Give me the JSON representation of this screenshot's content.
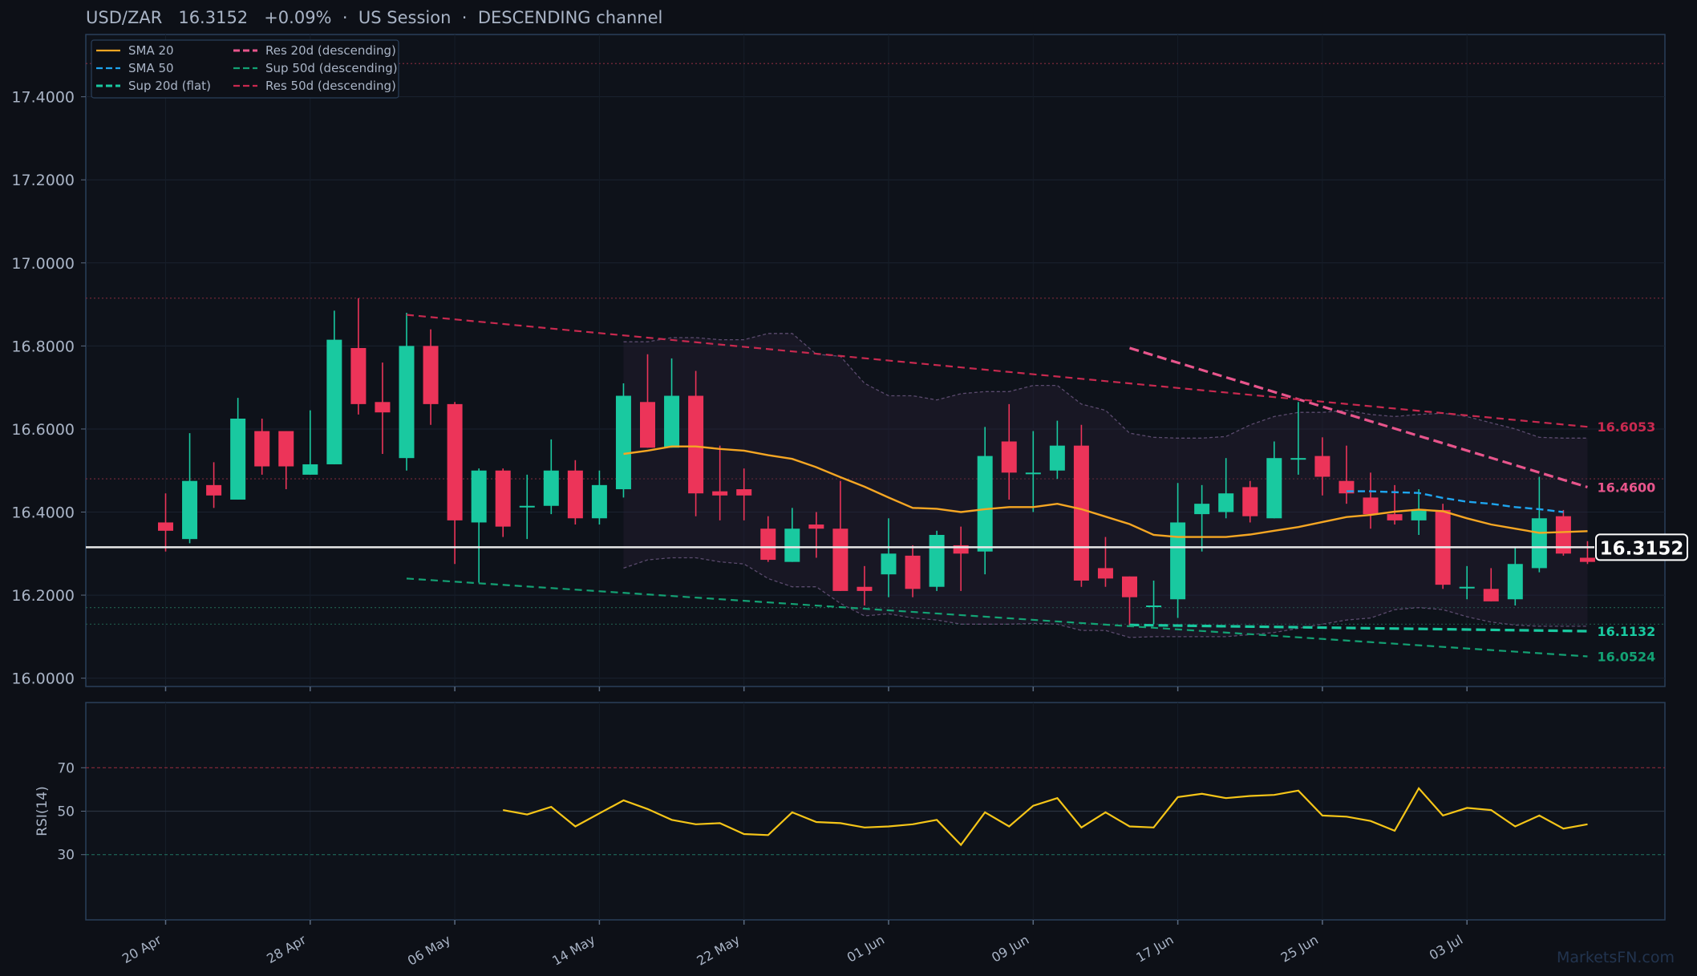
{
  "header": {
    "symbol": "USD/ZAR",
    "price": "16.3152",
    "change": "+0.09%",
    "session": "US Session",
    "channel": "DESCENDING channel",
    "sep": "·"
  },
  "watermark": "MarketsFN.com",
  "colors": {
    "background": "#0d1017",
    "plot_bg": "#0e121a",
    "frame": "#2a3f5a",
    "up": "#19c9a0",
    "down": "#ec3459",
    "sma20": "#f5a623",
    "sma50": "#1ea5ef",
    "sup20": "#19c9a0",
    "res20": "#e8558c",
    "sup50": "#13a274",
    "res50": "#c8294f",
    "rsi": "#f5c518",
    "band_edge": "#5b4b6e",
    "price_line": "#e8e8e8"
  },
  "chart_data": [
    {
      "type": "candlestick",
      "title": "USD/ZAR 16.3152 +0.09% · US Session · DESCENDING channel",
      "ylim": [
        15.98,
        17.55
      ],
      "y_ticks": [
        "16.0000",
        "16.2000",
        "16.4000",
        "16.6000",
        "16.8000",
        "17.0000",
        "17.2000",
        "17.4000"
      ],
      "x_ticks": [
        "20 Apr",
        "28 Apr",
        "06 May",
        "14 May",
        "22 May",
        "01 Jun",
        "09 Jun",
        "17 Jun",
        "25 Jun",
        "03 Jul"
      ],
      "current_price": "16.3152",
      "horizontal_levels": [
        17.48,
        16.915,
        16.48,
        16.17,
        16.13
      ],
      "candles": [
        {
          "date": "20 Apr",
          "o": 16.375,
          "h": 16.445,
          "l": 16.305,
          "c": 16.355
        },
        {
          "date": "21 Apr",
          "o": 16.335,
          "h": 16.59,
          "l": 16.325,
          "c": 16.475
        },
        {
          "date": "22 Apr",
          "o": 16.465,
          "h": 16.52,
          "l": 16.41,
          "c": 16.44
        },
        {
          "date": "23 Apr",
          "o": 16.43,
          "h": 16.675,
          "l": 16.43,
          "c": 16.625
        },
        {
          "date": "24 Apr",
          "o": 16.595,
          "h": 16.625,
          "l": 16.49,
          "c": 16.51
        },
        {
          "date": "27 Apr",
          "o": 16.595,
          "h": 16.595,
          "l": 16.455,
          "c": 16.51
        },
        {
          "date": "28 Apr",
          "o": 16.49,
          "h": 16.645,
          "l": 16.49,
          "c": 16.515
        },
        {
          "date": "29 Apr",
          "o": 16.515,
          "h": 16.885,
          "l": 16.515,
          "c": 16.815
        },
        {
          "date": "30 Apr",
          "o": 16.795,
          "h": 16.915,
          "l": 16.635,
          "c": 16.66
        },
        {
          "date": "01 May",
          "o": 16.665,
          "h": 16.76,
          "l": 16.54,
          "c": 16.64
        },
        {
          "date": "04 May",
          "o": 16.53,
          "h": 16.88,
          "l": 16.5,
          "c": 16.8
        },
        {
          "date": "05 May",
          "o": 16.8,
          "h": 16.84,
          "l": 16.61,
          "c": 16.66
        },
        {
          "date": "06 May",
          "o": 16.66,
          "h": 16.665,
          "l": 16.275,
          "c": 16.38
        },
        {
          "date": "07 May",
          "o": 16.375,
          "h": 16.505,
          "l": 16.23,
          "c": 16.5
        },
        {
          "date": "08 May",
          "o": 16.5,
          "h": 16.505,
          "l": 16.34,
          "c": 16.365
        },
        {
          "date": "11 May",
          "o": 16.415,
          "h": 16.49,
          "l": 16.335,
          "c": 16.415
        },
        {
          "date": "12 May",
          "o": 16.415,
          "h": 16.575,
          "l": 16.395,
          "c": 16.5
        },
        {
          "date": "13 May",
          "o": 16.5,
          "h": 16.525,
          "l": 16.37,
          "c": 16.385
        },
        {
          "date": "14 May",
          "o": 16.385,
          "h": 16.5,
          "l": 16.37,
          "c": 16.465
        },
        {
          "date": "15 May",
          "o": 16.455,
          "h": 16.71,
          "l": 16.435,
          "c": 16.68
        },
        {
          "date": "18 May",
          "o": 16.665,
          "h": 16.78,
          "l": 16.555,
          "c": 16.555
        },
        {
          "date": "19 May",
          "o": 16.555,
          "h": 16.77,
          "l": 16.555,
          "c": 16.68
        },
        {
          "date": "20 May",
          "o": 16.68,
          "h": 16.74,
          "l": 16.39,
          "c": 16.445
        },
        {
          "date": "21 May",
          "o": 16.45,
          "h": 16.56,
          "l": 16.38,
          "c": 16.44
        },
        {
          "date": "22 May",
          "o": 16.455,
          "h": 16.505,
          "l": 16.38,
          "c": 16.44
        },
        {
          "date": "25 May",
          "o": 16.36,
          "h": 16.39,
          "l": 16.28,
          "c": 16.285
        },
        {
          "date": "26 May",
          "o": 16.28,
          "h": 16.41,
          "l": 16.28,
          "c": 16.36
        },
        {
          "date": "27 May",
          "o": 16.37,
          "h": 16.4,
          "l": 16.29,
          "c": 16.36
        },
        {
          "date": "28 May",
          "o": 16.36,
          "h": 16.475,
          "l": 16.21,
          "c": 16.21
        },
        {
          "date": "29 May",
          "o": 16.22,
          "h": 16.27,
          "l": 16.175,
          "c": 16.21
        },
        {
          "date": "01 Jun",
          "o": 16.25,
          "h": 16.385,
          "l": 16.195,
          "c": 16.3
        },
        {
          "date": "02 Jun",
          "o": 16.295,
          "h": 16.32,
          "l": 16.195,
          "c": 16.215
        },
        {
          "date": "03 Jun",
          "o": 16.22,
          "h": 16.355,
          "l": 16.21,
          "c": 16.345
        },
        {
          "date": "04 Jun",
          "o": 16.32,
          "h": 16.365,
          "l": 16.21,
          "c": 16.3
        },
        {
          "date": "05 Jun",
          "o": 16.305,
          "h": 16.605,
          "l": 16.25,
          "c": 16.535
        },
        {
          "date": "08 Jun",
          "o": 16.57,
          "h": 16.66,
          "l": 16.43,
          "c": 16.495
        },
        {
          "date": "09 Jun",
          "o": 16.495,
          "h": 16.595,
          "l": 16.4,
          "c": 16.495
        },
        {
          "date": "10 Jun",
          "o": 16.5,
          "h": 16.62,
          "l": 16.48,
          "c": 16.56
        },
        {
          "date": "11 Jun",
          "o": 16.56,
          "h": 16.61,
          "l": 16.22,
          "c": 16.235
        },
        {
          "date": "12 Jun",
          "o": 16.265,
          "h": 16.34,
          "l": 16.22,
          "c": 16.24
        },
        {
          "date": "15 Jun",
          "o": 16.245,
          "h": 16.245,
          "l": 16.125,
          "c": 16.195
        },
        {
          "date": "16 Jun",
          "o": 16.175,
          "h": 16.235,
          "l": 16.13,
          "c": 16.175
        },
        {
          "date": "17 Jun",
          "o": 16.19,
          "h": 16.47,
          "l": 16.145,
          "c": 16.375
        },
        {
          "date": "18 Jun",
          "o": 16.395,
          "h": 16.465,
          "l": 16.305,
          "c": 16.42
        },
        {
          "date": "19 Jun",
          "o": 16.4,
          "h": 16.53,
          "l": 16.385,
          "c": 16.445
        },
        {
          "date": "22 Jun",
          "o": 16.46,
          "h": 16.475,
          "l": 16.375,
          "c": 16.39
        },
        {
          "date": "23 Jun",
          "o": 16.385,
          "h": 16.57,
          "l": 16.385,
          "c": 16.53
        },
        {
          "date": "24 Jun",
          "o": 16.53,
          "h": 16.665,
          "l": 16.49,
          "c": 16.53
        },
        {
          "date": "25 Jun",
          "o": 16.535,
          "h": 16.58,
          "l": 16.44,
          "c": 16.485
        },
        {
          "date": "26 Jun",
          "o": 16.475,
          "h": 16.56,
          "l": 16.42,
          "c": 16.445
        },
        {
          "date": "29 Jun",
          "o": 16.435,
          "h": 16.495,
          "l": 16.36,
          "c": 16.395
        },
        {
          "date": "30 Jun",
          "o": 16.395,
          "h": 16.465,
          "l": 16.37,
          "c": 16.38
        },
        {
          "date": "01 Jul",
          "o": 16.38,
          "h": 16.455,
          "l": 16.345,
          "c": 16.405
        },
        {
          "date": "02 Jul",
          "o": 16.405,
          "h": 16.42,
          "l": 16.215,
          "c": 16.225
        },
        {
          "date": "03 Jul",
          "o": 16.22,
          "h": 16.27,
          "l": 16.19,
          "c": 16.22
        },
        {
          "date": "06 Jul",
          "o": 16.215,
          "h": 16.265,
          "l": 16.185,
          "c": 16.185
        },
        {
          "date": "07 Jul",
          "o": 16.19,
          "h": 16.315,
          "l": 16.175,
          "c": 16.275
        },
        {
          "date": "08 Jul",
          "o": 16.265,
          "h": 16.485,
          "l": 16.255,
          "c": 16.385
        },
        {
          "date": "09 Jul",
          "o": 16.39,
          "h": 16.405,
          "l": 16.295,
          "c": 16.3
        },
        {
          "date": "10 Jul",
          "o": 16.29,
          "h": 16.33,
          "l": 16.275,
          "c": 16.28
        }
      ],
      "series": [
        {
          "name": "SMA 20",
          "style": "solid",
          "color": "#f5a623",
          "start_index": 19,
          "values": [
            16.54,
            16.548,
            16.558,
            16.558,
            16.552,
            16.548,
            16.537,
            16.528,
            16.508,
            16.484,
            16.461,
            16.435,
            16.41,
            16.408,
            16.4,
            16.407,
            16.412,
            16.412,
            16.42,
            16.407,
            16.389,
            16.371,
            16.345,
            16.34,
            16.34,
            16.34,
            16.346,
            16.355,
            16.364,
            16.376,
            16.388,
            16.393,
            16.401,
            16.406,
            16.402,
            16.385,
            16.37,
            16.36,
            16.35,
            16.352,
            16.354
          ]
        },
        {
          "name": "SMA 50",
          "style": "dashed",
          "color": "#1ea5ef",
          "start_index": 49,
          "values": [
            16.45,
            16.45,
            16.448,
            16.446,
            16.434,
            16.425,
            16.42,
            16.412,
            16.407,
            16.4
          ]
        },
        {
          "name": "Sup 20d (flat)",
          "style": "dashed",
          "color": "#19c9a0",
          "x_start": "15 Jun",
          "x_end": "10 Jul",
          "y_start": 16.1282,
          "y_end": 16.1132
        },
        {
          "name": "Res 20d (descending)",
          "style": "dashed",
          "color": "#e8558c",
          "x_start": "15 Jun",
          "x_end": "10 Jul",
          "y_start": 16.795,
          "y_end": 16.46
        },
        {
          "name": "Sup 50d (descending)",
          "style": "dashed",
          "color": "#13a274",
          "x_start": "04 May",
          "x_end": "10 Jul",
          "y_start": 16.24,
          "y_end": 16.0524
        },
        {
          "name": "Res 50d (descending)",
          "style": "dashed",
          "color": "#c8294f",
          "x_start": "04 May",
          "x_end": "10 Jul",
          "y_start": 16.875,
          "y_end": 16.6053
        }
      ],
      "band": {
        "start_index": 19,
        "upper": [
          16.81,
          16.81,
          16.82,
          16.82,
          16.815,
          16.815,
          16.83,
          16.83,
          16.78,
          16.775,
          16.71,
          16.68,
          16.68,
          16.67,
          16.685,
          16.69,
          16.69,
          16.705,
          16.705,
          16.66,
          16.645,
          16.59,
          16.58,
          16.578,
          16.578,
          16.582,
          16.61,
          16.63,
          16.64,
          16.64,
          16.645,
          16.635,
          16.63,
          16.635,
          16.638,
          16.63,
          16.615,
          16.6,
          16.58,
          16.578,
          16.578
        ],
        "lower": [
          16.265,
          16.285,
          16.29,
          16.29,
          16.28,
          16.275,
          16.24,
          16.22,
          16.22,
          16.18,
          16.15,
          16.155,
          16.145,
          16.14,
          16.13,
          16.13,
          16.13,
          16.132,
          16.13,
          16.115,
          16.115,
          16.098,
          16.1,
          16.1,
          16.1,
          16.1,
          16.105,
          16.11,
          16.12,
          16.13,
          16.14,
          16.145,
          16.165,
          16.17,
          16.165,
          16.148,
          16.135,
          16.128,
          16.125,
          16.125,
          16.125
        ]
      },
      "end_labels": [
        "16.6053",
        "16.4600",
        "16.1132",
        "16.0524"
      ],
      "legend": {
        "placement": "top-left",
        "entries": [
          {
            "name": "SMA 20",
            "color": "#f5a623",
            "dash": "solid"
          },
          {
            "name": "SMA 50",
            "color": "#1ea5ef",
            "dash": "dashed"
          },
          {
            "name": "Sup 20d (flat)",
            "color": "#19c9a0",
            "dash": "dashed"
          },
          {
            "name": "Res 20d (descending)",
            "color": "#e8558c",
            "dash": "dashed"
          },
          {
            "name": "Sup 50d (descending)",
            "color": "#13a274",
            "dash": "dashed"
          },
          {
            "name": "Res 50d (descending)",
            "color": "#c8294f",
            "dash": "dashed"
          }
        ]
      }
    },
    {
      "type": "line",
      "ylabel": "RSI(14)",
      "ylim": [
        0,
        100
      ],
      "y_ticks": [
        "30",
        "50",
        "70"
      ],
      "levels": [
        70,
        50,
        30
      ],
      "start_index": 14,
      "series": [
        {
          "name": "RSI(14)",
          "color": "#f5c518",
          "values": [
            50.5,
            48.5,
            52,
            43,
            49,
            55,
            51,
            46,
            44,
            44.5,
            39.5,
            39,
            49.5,
            45,
            44.5,
            42.5,
            43,
            44,
            46,
            34.5,
            49.5,
            43,
            52.5,
            56,
            42.5,
            49.5,
            43,
            42.5,
            56.5,
            58,
            56,
            57,
            57.5,
            59.5,
            48,
            47.5,
            45.5,
            41,
            60.5,
            48,
            51.5,
            50.5,
            43,
            48,
            42,
            44
          ]
        }
      ]
    }
  ]
}
